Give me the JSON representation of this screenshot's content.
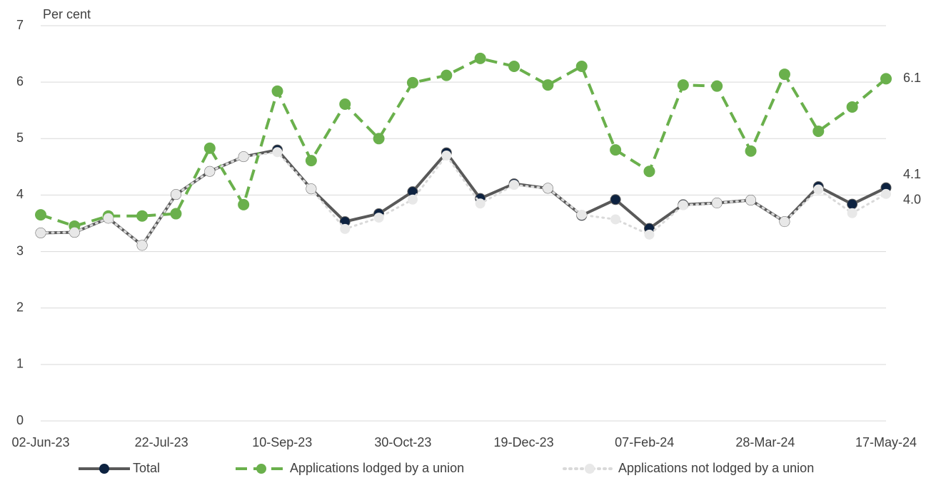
{
  "chart_data": {
    "type": "line",
    "y_label": "Per cent",
    "x": [
      "2023-06-02",
      "2023-06-16",
      "2023-06-30",
      "2023-07-14",
      "2023-07-28",
      "2023-08-11",
      "2023-08-25",
      "2023-09-08",
      "2023-09-22",
      "2023-10-06",
      "2023-10-20",
      "2023-11-03",
      "2023-11-17",
      "2023-12-01",
      "2023-12-15",
      "2023-12-29",
      "2024-01-12",
      "2024-01-26",
      "2024-02-09",
      "2024-02-23",
      "2024-03-08",
      "2024-03-22",
      "2024-04-05",
      "2024-04-19",
      "2024-05-03",
      "2024-05-17"
    ],
    "xlim": [
      "2023-06-02",
      "2024-05-17"
    ],
    "xticks": [
      {
        "value": "2023-06-02",
        "label": "02-Jun-23"
      },
      {
        "value": "2023-07-22",
        "label": "22-Jul-23"
      },
      {
        "value": "2023-09-10",
        "label": "10-Sep-23"
      },
      {
        "value": "2023-10-30",
        "label": "30-Oct-23"
      },
      {
        "value": "2023-12-19",
        "label": "19-Dec-23"
      },
      {
        "value": "2024-02-07",
        "label": "07-Feb-24"
      },
      {
        "value": "2024-03-28",
        "label": "28-Mar-24"
      },
      {
        "value": "2024-05-17",
        "label": "17-May-24"
      }
    ],
    "ylim": [
      0,
      7
    ],
    "yticks": [
      0,
      1,
      2,
      3,
      4,
      5,
      6,
      7
    ],
    "grid": true,
    "legend": "bottom",
    "series": [
      {
        "name": "Total",
        "color": "#595959",
        "marker_color": "#0d2240",
        "dash": "solid",
        "values": [
          3.33,
          3.34,
          3.59,
          3.11,
          4.01,
          4.42,
          4.68,
          4.8,
          4.11,
          3.53,
          3.67,
          4.06,
          4.75,
          3.94,
          4.2,
          4.12,
          3.64,
          3.92,
          3.41,
          3.83,
          3.86,
          3.91,
          3.53,
          4.15,
          3.84,
          4.13
        ],
        "value_labels": [
          null,
          null,
          null,
          null,
          null,
          null,
          null,
          null,
          null,
          null,
          null,
          null,
          null,
          null,
          null,
          null,
          null,
          null,
          null,
          null,
          null,
          null,
          null,
          null,
          null,
          "4.1"
        ]
      },
      {
        "name": "Applications lodged by a union",
        "color": "#6ab04c",
        "marker_color": "#6ab04c",
        "dash": "dashed",
        "values": [
          3.65,
          3.45,
          3.63,
          3.63,
          3.67,
          4.83,
          3.83,
          5.84,
          4.61,
          5.61,
          5.0,
          5.99,
          6.12,
          6.42,
          6.28,
          5.95,
          6.28,
          4.8,
          4.42,
          5.95,
          5.93,
          4.78,
          6.14,
          5.13,
          5.56,
          6.06
        ],
        "value_labels": [
          null,
          null,
          null,
          null,
          null,
          null,
          null,
          null,
          null,
          null,
          null,
          null,
          null,
          null,
          null,
          null,
          null,
          null,
          null,
          null,
          null,
          null,
          null,
          null,
          null,
          "6.1"
        ]
      },
      {
        "name": "Applications not lodged by a union",
        "color": "#d9d9d9",
        "marker_color": "#e8e8e8",
        "dash": "dotted",
        "values": [
          3.33,
          3.34,
          3.59,
          3.11,
          4.01,
          4.42,
          4.68,
          4.76,
          4.11,
          3.4,
          3.6,
          3.92,
          4.7,
          3.85,
          4.18,
          4.12,
          3.65,
          3.57,
          3.3,
          3.82,
          3.86,
          3.91,
          3.53,
          4.1,
          3.68,
          4.02
        ],
        "value_labels": [
          null,
          null,
          null,
          null,
          null,
          null,
          null,
          null,
          null,
          null,
          null,
          null,
          null,
          null,
          null,
          null,
          null,
          null,
          null,
          null,
          null,
          null,
          null,
          null,
          null,
          "4.0"
        ]
      }
    ]
  }
}
